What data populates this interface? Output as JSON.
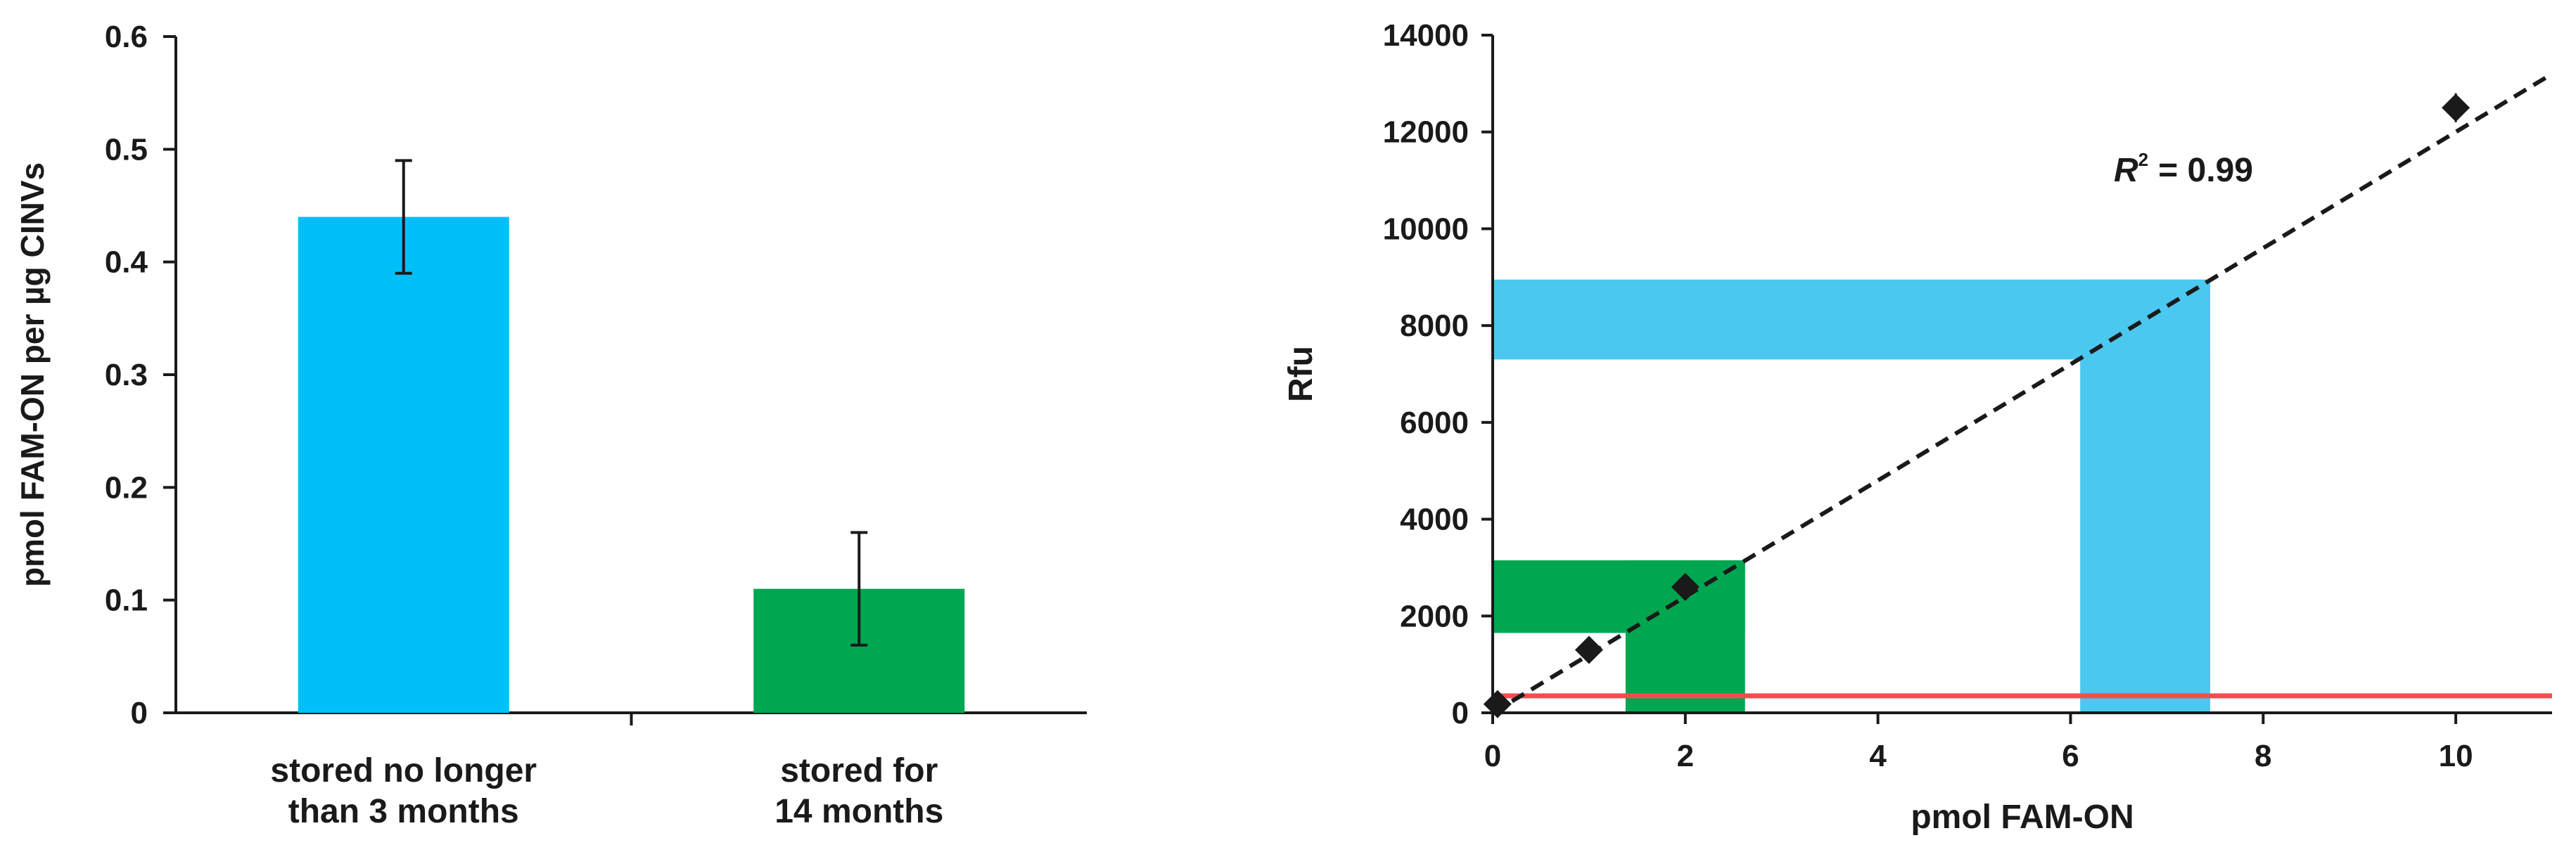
{
  "chart_data": [
    {
      "type": "bar",
      "title": "",
      "xlabel": "",
      "ylabel": "pmol FAM-ON per µg CINVs",
      "ylim": [
        0,
        0.6
      ],
      "yticks": [
        0,
        0.1,
        0.2,
        0.3,
        0.4,
        0.5,
        0.6
      ],
      "ytick_labels": [
        "0",
        "0.1",
        "0.2",
        "0.3",
        "0.4",
        "0.5",
        "0.6"
      ],
      "categories": [
        [
          "stored no longer",
          "than 3 months"
        ],
        [
          "stored for",
          "14 months"
        ]
      ],
      "values": [
        0.44,
        0.11
      ],
      "errors": [
        0.05,
        0.05
      ],
      "colors": [
        "#00c0f7",
        "#00a650"
      ],
      "grid": false
    },
    {
      "type": "scatter",
      "title": "",
      "xlabel": "pmol FAM-ON",
      "ylabel": "Rfu",
      "xlim": [
        0,
        11
      ],
      "ylim": [
        0,
        14000
      ],
      "xticks": [
        0,
        2,
        4,
        6,
        8,
        10
      ],
      "xtick_labels": [
        "0",
        "2",
        "4",
        "6",
        "8",
        "10"
      ],
      "yticks": [
        0,
        2000,
        4000,
        6000,
        8000,
        10000,
        12000,
        14000
      ],
      "ytick_labels": [
        "0",
        "2000",
        "4000",
        "6000",
        "8000",
        "10000",
        "12000",
        "14000"
      ],
      "points": [
        {
          "x": 0.05,
          "y": 180,
          "yerr": 90
        },
        {
          "x": 1,
          "y": 1300,
          "yerr": 150
        },
        {
          "x": 2,
          "y": 2600,
          "yerr": 130
        },
        {
          "x": 10,
          "y": 12500,
          "yerr": 300
        }
      ],
      "trendline": {
        "style": "dashed",
        "color": "#1a1a1a",
        "x": [
          0,
          11
        ],
        "y": [
          0,
          13200
        ]
      },
      "annotation": {
        "label": "R",
        "superscript": "2",
        "value": "= 0.99"
      },
      "threshold_line": {
        "y": 350,
        "color": "#f04e4e"
      },
      "highlight_bands": [
        {
          "color": "#4bc8ef",
          "y_range": [
            7300,
            8950
          ],
          "x_range": [
            0,
            7.45
          ]
        },
        {
          "color": "#4bc8ef",
          "x_range": [
            6.1,
            7.45
          ],
          "y_range": [
            0,
            8950
          ]
        },
        {
          "color": "#00a650",
          "y_range": [
            1650,
            3150
          ],
          "x_range": [
            0,
            2.62
          ]
        },
        {
          "color": "#00a650",
          "x_range": [
            1.38,
            2.62
          ],
          "y_range": [
            0,
            3150
          ]
        }
      ],
      "grid": false
    }
  ]
}
